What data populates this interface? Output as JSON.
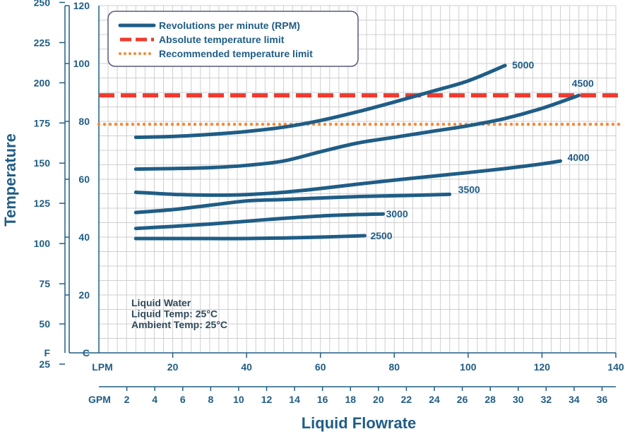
{
  "chart_data": {
    "type": "line",
    "title": "",
    "colors": {
      "series": "#1f5d86",
      "absolute": "#f03a2e",
      "recommended": "#f28a3a",
      "grid": "#cfcfcf",
      "axis": "#1f5d86"
    },
    "x_axis": {
      "label": "Liquid Flowrate",
      "lpm_label": "LPM",
      "lpm_ticks": [
        20,
        40,
        60,
        80,
        100,
        120,
        140
      ],
      "lpm_range": [
        0,
        140
      ],
      "gpm_label": "GPM",
      "gpm_ticks": [
        2,
        4,
        6,
        8,
        10,
        12,
        14,
        16,
        18,
        20,
        22,
        24,
        26,
        28,
        30,
        32,
        34,
        36
      ]
    },
    "y_axis": {
      "label": "Temperature",
      "c_label": "C",
      "c_ticks": [
        20,
        40,
        60,
        80,
        100,
        120
      ],
      "c_range": [
        0,
        120
      ],
      "f_label": "F",
      "f_ticks": [
        25,
        50,
        75,
        100,
        125,
        150,
        175,
        200,
        225,
        250
      ]
    },
    "grid": true,
    "legend": {
      "position": "top-left",
      "items": [
        {
          "label": "Revolutions per minute (RPM)",
          "style": "solid"
        },
        {
          "label": "Absolute temperature limit",
          "style": "dashed"
        },
        {
          "label": "Recommended temperature limit",
          "style": "dotted"
        }
      ]
    },
    "limits": {
      "absolute_c": 89,
      "recommended_c": 79
    },
    "series": [
      {
        "name": "5000",
        "x": [
          10,
          20,
          30,
          40,
          50,
          60,
          70,
          80,
          90,
          100,
          110
        ],
        "y": [
          74.5,
          74.8,
          75.5,
          76.5,
          78.0,
          80.3,
          83.3,
          86.7,
          90.3,
          94.0,
          99.3
        ]
      },
      {
        "name": "4500",
        "x": [
          10,
          20,
          30,
          40,
          50,
          60,
          70,
          80,
          90,
          100,
          110,
          120,
          130
        ],
        "y": [
          63.5,
          63.7,
          64.0,
          64.8,
          66.3,
          69.5,
          72.5,
          74.5,
          76.5,
          78.5,
          81.0,
          84.5,
          89.0
        ]
      },
      {
        "name": "4000",
        "x": [
          10,
          20,
          30,
          40,
          50,
          60,
          70,
          80,
          90,
          100,
          110,
          120,
          125
        ],
        "y": [
          55.5,
          54.8,
          54.5,
          54.7,
          55.5,
          56.8,
          58.3,
          59.7,
          61.0,
          62.3,
          63.7,
          65.3,
          66.3
        ]
      },
      {
        "name": "3500",
        "x": [
          10,
          20,
          30,
          40,
          50,
          60,
          70,
          80,
          90,
          95
        ],
        "y": [
          48.5,
          49.5,
          51.0,
          52.5,
          53.0,
          53.5,
          54.0,
          54.3,
          54.6,
          54.8
        ]
      },
      {
        "name": "3000",
        "x": [
          10,
          20,
          30,
          40,
          50,
          60,
          70,
          77
        ],
        "y": [
          43.0,
          43.7,
          44.5,
          45.5,
          46.5,
          47.3,
          47.8,
          48.0
        ]
      },
      {
        "name": "2500",
        "x": [
          10,
          20,
          30,
          40,
          50,
          60,
          72
        ],
        "y": [
          39.5,
          39.5,
          39.5,
          39.5,
          39.7,
          40.0,
          40.5
        ]
      }
    ],
    "annotation": {
      "lines": [
        "Liquid Water",
        "Liquid Temp: 25°C",
        "Ambient Temp: 25°C"
      ]
    }
  }
}
